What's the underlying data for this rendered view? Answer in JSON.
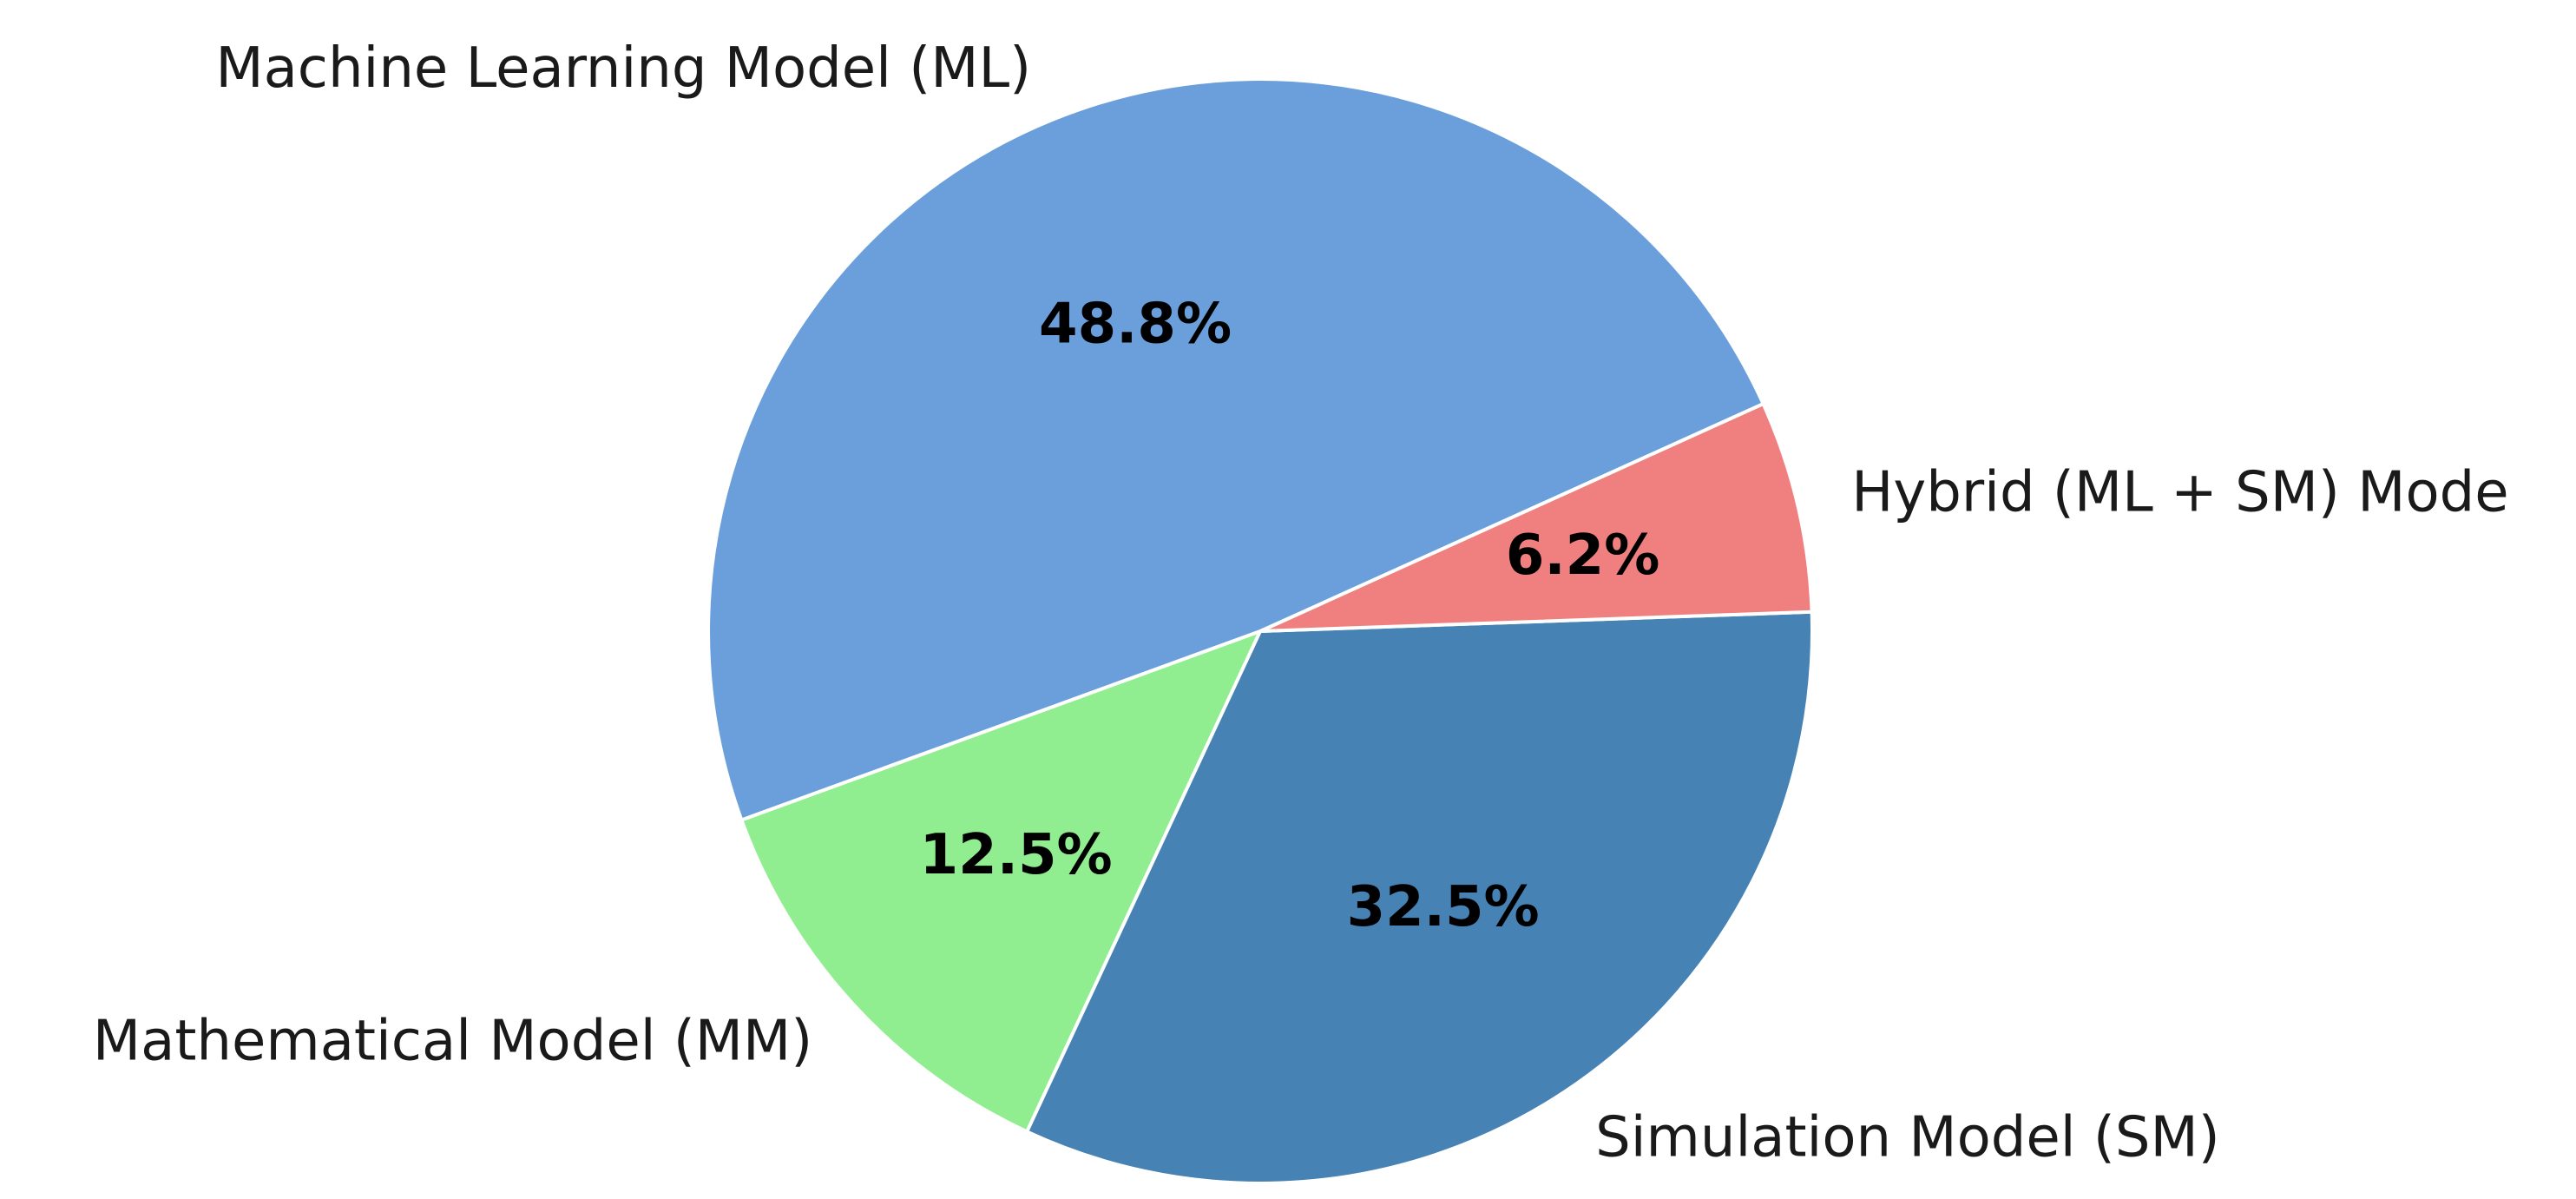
{
  "chart_data": {
    "type": "pie",
    "title": "",
    "start_angle_deg": 200,
    "direction": "counterclockwise",
    "slices": [
      {
        "label": "Mathematical Model (MM)",
        "value": 12.5,
        "pct_label": "12.5%",
        "color": "#90ee90"
      },
      {
        "label": "Simulation Model (SM)",
        "value": 32.5,
        "pct_label": "32.5%",
        "color": "#4682b4"
      },
      {
        "label": "Hybrid (ML + SM) Mode",
        "value": 6.2,
        "pct_label": "6.2%",
        "color": "#f08080"
      },
      {
        "label": "Machine Learning Model (ML)",
        "value": 48.8,
        "pct_label": "48.8%",
        "color": "#6a9fdb"
      }
    ],
    "legend": "none"
  }
}
